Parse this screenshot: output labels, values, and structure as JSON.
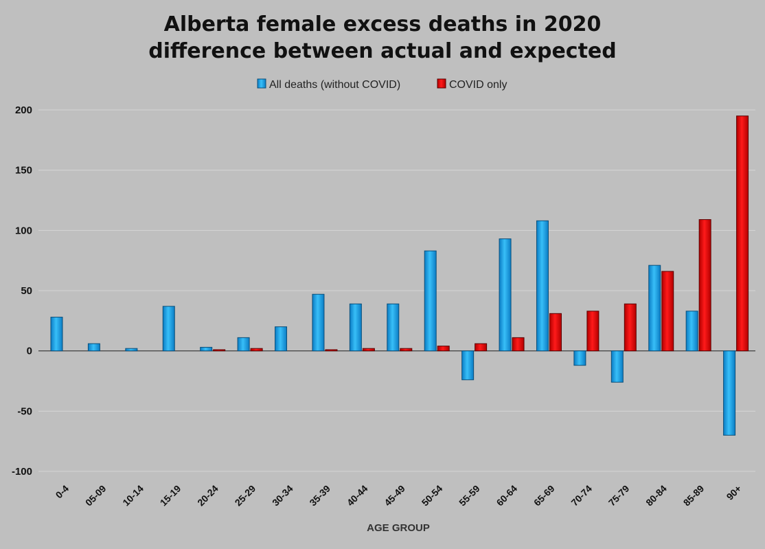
{
  "chart_data": {
    "type": "bar",
    "title": "Alberta female excess deaths in 2020",
    "subtitle": "difference between actual and expected",
    "xlabel": "AGE GROUP",
    "ylabel": "",
    "ylim": [
      -100,
      200
    ],
    "yticks": [
      200,
      150,
      100,
      50,
      0,
      -50,
      -100
    ],
    "grid": true,
    "legend_position": "top",
    "categories": [
      "0-4",
      "05-09",
      "10-14",
      "15-19",
      "20-24",
      "25-29",
      "30-34",
      "35-39",
      "40-44",
      "45-49",
      "50-54",
      "55-59",
      "60-64",
      "65-69",
      "70-74",
      "75-79",
      "80-84",
      "85-89",
      "90+"
    ],
    "series": [
      {
        "name": "All deaths (without COVID)",
        "color": "#1fa0e6",
        "values": [
          28,
          6,
          2,
          37,
          3,
          11,
          20,
          47,
          39,
          39,
          83,
          -24,
          93,
          108,
          -12,
          -26,
          71,
          33,
          -70
        ]
      },
      {
        "name": "COVID only",
        "color": "#e30000",
        "values": [
          null,
          null,
          null,
          null,
          1,
          2,
          null,
          1,
          2,
          2,
          4,
          6,
          11,
          31,
          33,
          39,
          66,
          109,
          195
        ]
      }
    ]
  }
}
